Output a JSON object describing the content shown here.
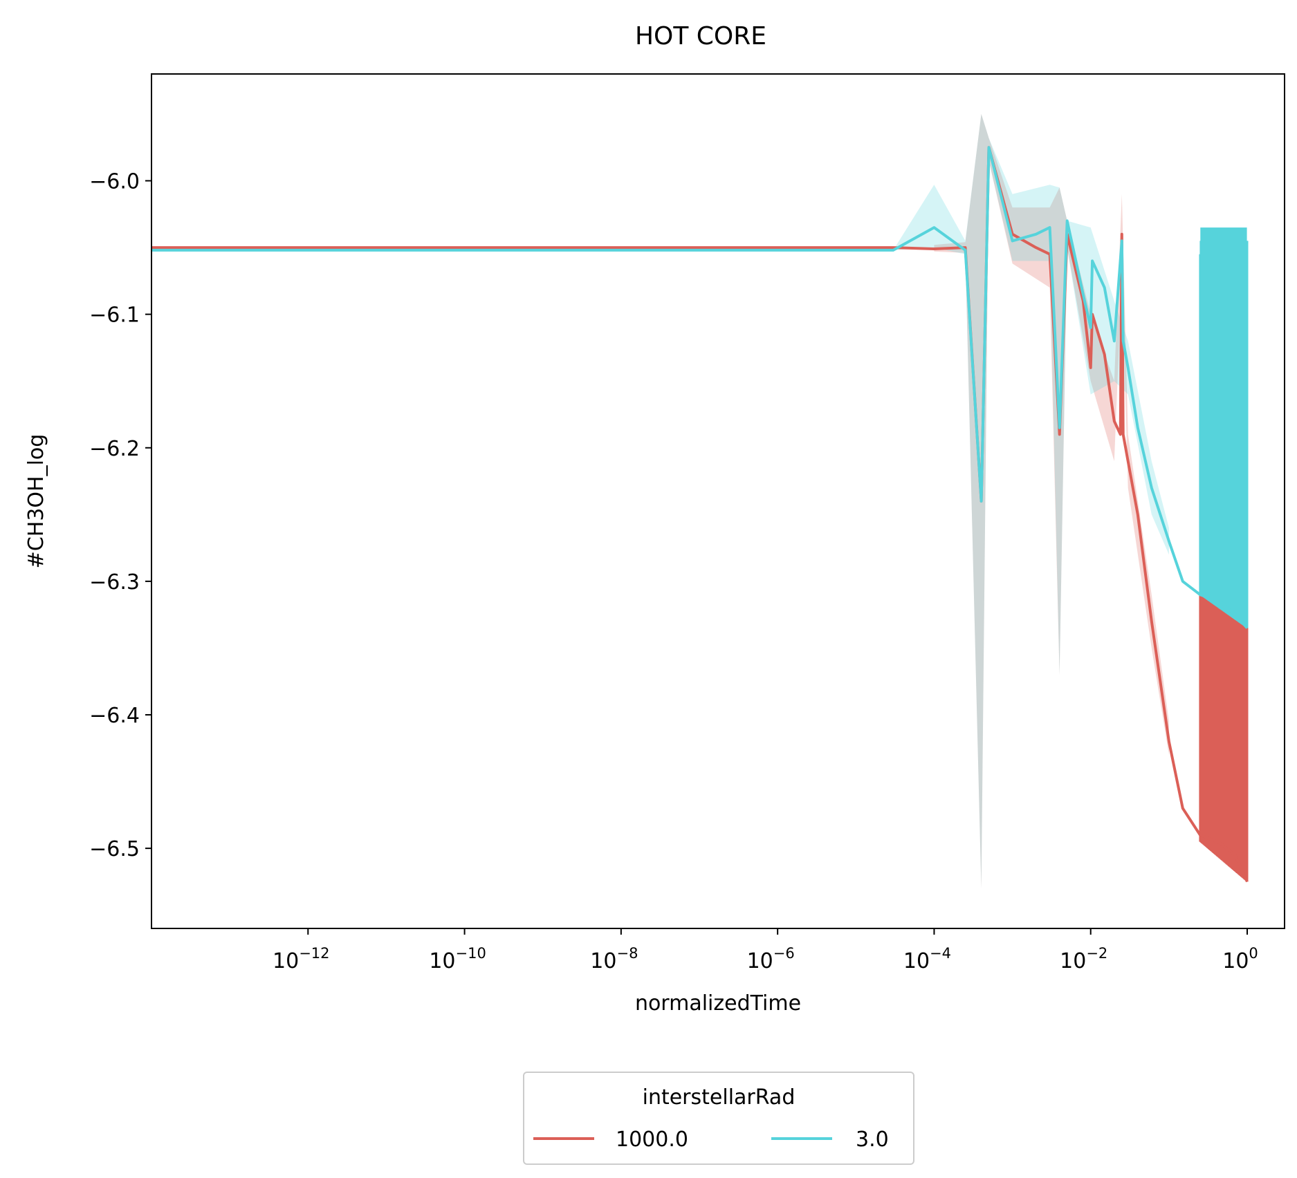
{
  "chart_data": {
    "type": "line",
    "title": "HOT CORE",
    "xlabel": "normalizedTime",
    "ylabel": "#CH3OH_log",
    "xscale": "log",
    "xlim": [
      1e-14,
      3.0
    ],
    "ylim": [
      -6.56,
      -5.92
    ],
    "xticks": [
      1e-12,
      1e-10,
      1e-08,
      1e-06,
      0.0001,
      0.01,
      1
    ],
    "xtick_labels": [
      {
        "base": "10",
        "exp": "−12"
      },
      {
        "base": "10",
        "exp": "−10"
      },
      {
        "base": "10",
        "exp": "−8"
      },
      {
        "base": "10",
        "exp": "−6"
      },
      {
        "base": "10",
        "exp": "−4"
      },
      {
        "base": "10",
        "exp": "−2"
      },
      {
        "base": "10",
        "exp": "0"
      }
    ],
    "yticks": [
      -6.0,
      -6.1,
      -6.2,
      -6.3,
      -6.4,
      -6.5
    ],
    "ytick_labels": [
      "−6.0",
      "−6.1",
      "−6.2",
      "−6.3",
      "−6.4",
      "−6.5"
    ],
    "grid": false,
    "legend": {
      "title": "interstellarRad",
      "placement": "bottom-center, below axes",
      "entries": [
        "1000.0",
        "3.0"
      ]
    },
    "series": [
      {
        "name": "1000.0",
        "color": "#db5f57",
        "points": [
          [
            1e-14,
            -6.05
          ],
          [
            1e-06,
            -6.05
          ],
          [
            3e-05,
            -6.05
          ],
          [
            0.0001,
            -6.051
          ],
          [
            0.00025,
            -6.05
          ],
          [
            0.0004,
            -6.24
          ],
          [
            0.0005,
            -5.975
          ],
          [
            0.001,
            -6.04
          ],
          [
            0.002,
            -6.05
          ],
          [
            0.003,
            -6.055
          ],
          [
            0.004,
            -6.19
          ],
          [
            0.005,
            -6.04
          ],
          [
            0.008,
            -6.09
          ],
          [
            0.01,
            -6.14
          ],
          [
            0.0105,
            -6.1
          ],
          [
            0.015,
            -6.13
          ],
          [
            0.02,
            -6.18
          ],
          [
            0.024,
            -6.19
          ],
          [
            0.025,
            -6.04
          ],
          [
            0.026,
            -6.19
          ],
          [
            0.03,
            -6.21
          ],
          [
            0.04,
            -6.25
          ],
          [
            0.06,
            -6.33
          ],
          [
            0.1,
            -6.42
          ],
          [
            0.15,
            -6.47
          ],
          [
            0.25,
            -6.49
          ],
          [
            0.45,
            -6.496
          ],
          [
            0.7,
            -6.505
          ],
          [
            1.0,
            -6.525
          ]
        ],
        "band": [
          [
            0.0001,
            -6.048,
            -6.053
          ],
          [
            0.00025,
            -6.046,
            -6.054
          ],
          [
            0.0004,
            -5.95,
            -6.53
          ],
          [
            0.0005,
            -5.968,
            -5.985
          ],
          [
            0.001,
            -6.02,
            -6.062
          ],
          [
            0.003,
            -6.02,
            -6.08
          ],
          [
            0.004,
            -6.005,
            -6.37
          ],
          [
            0.005,
            -6.03,
            -6.05
          ],
          [
            0.01,
            -6.1,
            -6.15
          ],
          [
            0.02,
            -6.15,
            -6.21
          ],
          [
            0.025,
            -6.01,
            -6.07
          ],
          [
            0.03,
            -6.19,
            -6.23
          ],
          [
            0.06,
            -6.31,
            -6.35
          ],
          [
            0.1,
            -6.405,
            -6.43
          ]
        ],
        "oscillation": {
          "x_range": [
            0.25,
            1.0
          ],
          "y_range": [
            -6.31,
            -6.525
          ]
        }
      },
      {
        "name": "3.0",
        "color": "#56d3db",
        "points": [
          [
            1e-14,
            -6.052
          ],
          [
            1e-06,
            -6.052
          ],
          [
            3e-05,
            -6.052
          ],
          [
            0.0001,
            -6.035
          ],
          [
            0.00025,
            -6.052
          ],
          [
            0.0004,
            -6.24
          ],
          [
            0.0005,
            -5.975
          ],
          [
            0.001,
            -6.045
          ],
          [
            0.002,
            -6.04
          ],
          [
            0.003,
            -6.035
          ],
          [
            0.004,
            -6.185
          ],
          [
            0.005,
            -6.03
          ],
          [
            0.008,
            -6.085
          ],
          [
            0.01,
            -6.11
          ],
          [
            0.0105,
            -6.06
          ],
          [
            0.015,
            -6.08
          ],
          [
            0.02,
            -6.12
          ],
          [
            0.025,
            -6.045
          ],
          [
            0.026,
            -6.12
          ],
          [
            0.03,
            -6.14
          ],
          [
            0.04,
            -6.185
          ],
          [
            0.06,
            -6.23
          ],
          [
            0.1,
            -6.27
          ],
          [
            0.15,
            -6.3
          ],
          [
            0.25,
            -6.31
          ],
          [
            0.45,
            -6.315
          ],
          [
            0.7,
            -6.325
          ],
          [
            1.0,
            -6.335
          ]
        ],
        "band": [
          [
            3e-05,
            -6.052,
            -6.052
          ],
          [
            0.0001,
            -6.003,
            -6.05
          ],
          [
            0.00025,
            -6.045,
            -6.055
          ],
          [
            0.0004,
            -5.95,
            -6.53
          ],
          [
            0.0005,
            -5.968,
            -5.985
          ],
          [
            0.001,
            -6.01,
            -6.06
          ],
          [
            0.003,
            -6.003,
            -6.06
          ],
          [
            0.004,
            -6.005,
            -6.37
          ],
          [
            0.005,
            -6.03,
            -6.05
          ],
          [
            0.01,
            -6.035,
            -6.16
          ],
          [
            0.02,
            -6.09,
            -6.15
          ],
          [
            0.03,
            -6.12,
            -6.16
          ],
          [
            0.06,
            -6.21,
            -6.25
          ],
          [
            0.1,
            -6.26,
            -6.28
          ]
        ],
        "oscillation": {
          "x_range": [
            0.25,
            1.0
          ],
          "y_range": [
            -6.055,
            -6.335
          ]
        }
      }
    ]
  }
}
